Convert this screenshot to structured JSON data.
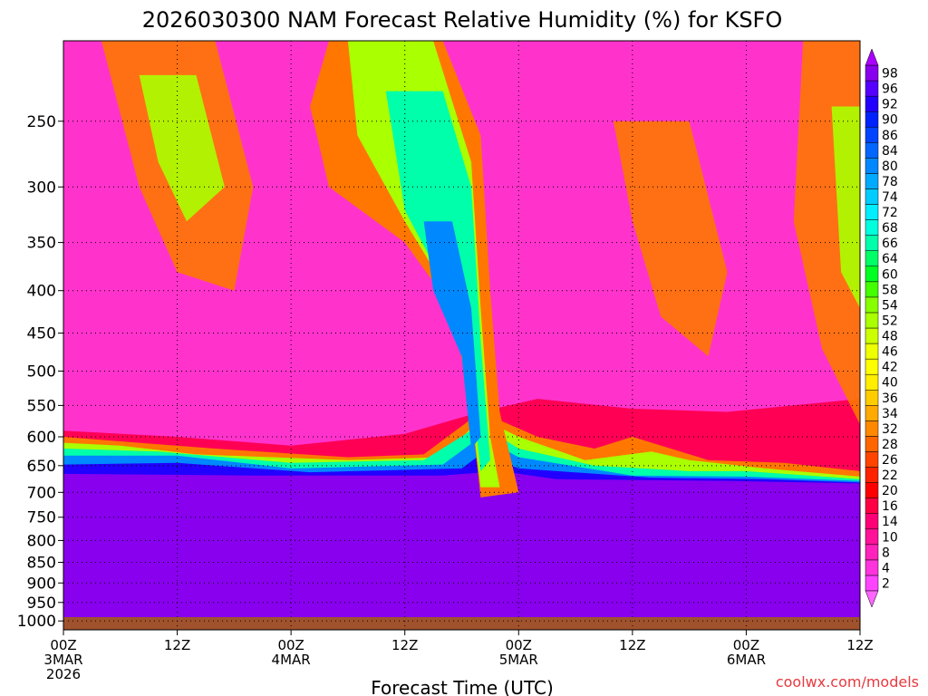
{
  "chart_data": {
    "type": "heatmap",
    "title": "2026030300 NAM Forecast Relative Humidity (%) for KSFO",
    "xlabel": "Forecast Time (UTC)",
    "ylabel": "",
    "credit": "coolwx.com/models",
    "x_ticks": [
      {
        "hours": 0,
        "lines": [
          "00Z",
          "3MAR",
          "2026"
        ]
      },
      {
        "hours": 12,
        "lines": [
          "12Z"
        ]
      },
      {
        "hours": 24,
        "lines": [
          "00Z",
          "4MAR"
        ]
      },
      {
        "hours": 36,
        "lines": [
          "12Z"
        ]
      },
      {
        "hours": 48,
        "lines": [
          "00Z",
          "5MAR"
        ]
      },
      {
        "hours": 60,
        "lines": [
          "12Z"
        ]
      },
      {
        "hours": 72,
        "lines": [
          "00Z",
          "6MAR"
        ]
      },
      {
        "hours": 84,
        "lines": [
          "12Z"
        ]
      }
    ],
    "xlim": [
      0,
      84
    ],
    "y_ticks": [
      250,
      300,
      350,
      400,
      450,
      500,
      550,
      600,
      650,
      700,
      750,
      800,
      850,
      900,
      950,
      1000
    ],
    "ylim": [
      1025,
      200
    ],
    "y_scale": "log",
    "grid": true,
    "colorbar_labels": [
      2,
      4,
      8,
      10,
      14,
      16,
      20,
      22,
      26,
      28,
      32,
      34,
      36,
      40,
      42,
      46,
      48,
      52,
      54,
      58,
      60,
      64,
      66,
      68,
      72,
      74,
      78,
      80,
      84,
      86,
      90,
      92,
      96,
      98
    ],
    "colorbar_colors": [
      "#ff44ff",
      "#ff33dd",
      "#ff22bb",
      "#ff1199",
      "#ff0077",
      "#ff0044",
      "#ff0000",
      "#ff2200",
      "#ff4400",
      "#ff6600",
      "#ff8800",
      "#ffaa00",
      "#ffcc00",
      "#ffee00",
      "#ffff00",
      "#eeff00",
      "#ccff00",
      "#aaff00",
      "#88ff00",
      "#44ff00",
      "#00ff22",
      "#00ff66",
      "#00ffaa",
      "#00ffdd",
      "#00eeff",
      "#00ccff",
      "#00aaff",
      "#0088ff",
      "#0066ff",
      "#0044ff",
      "#0022ff",
      "#2200ff",
      "#5500ff",
      "#8800ee"
    ],
    "ground_color": "#a0522d",
    "terrain_note": ""
  }
}
